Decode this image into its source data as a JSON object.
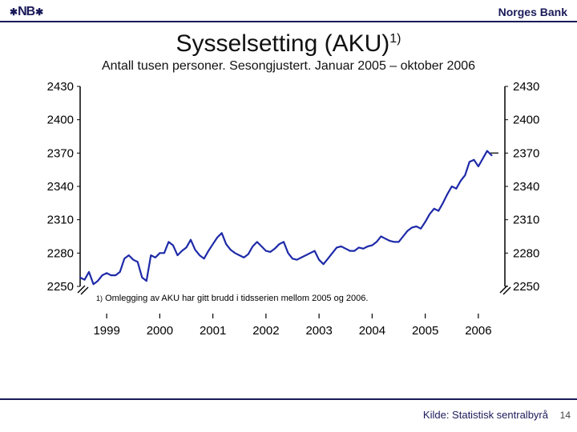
{
  "header": {
    "logo": "NB",
    "org": "Norges Bank"
  },
  "title": "Sysselsetting (AKU)",
  "title_sup": "1)",
  "subtitle": "Antall tusen personer. Sesongjustert. Januar 2005 – oktober 2006",
  "chart": {
    "type": "line",
    "ylim": [
      2250,
      2430
    ],
    "ytick_step": 30,
    "yticks": [
      2250,
      2280,
      2310,
      2340,
      2370,
      2400,
      2430
    ],
    "xlim_year": [
      1999,
      2007
    ],
    "xticks": [
      1999,
      2000,
      2001,
      2002,
      2003,
      2004,
      2005,
      2006
    ],
    "line_color": "#1e2aa8",
    "line_width": 2.2,
    "axis_color": "#000000",
    "background_color": "#ffffff",
    "crop_mark_color": "#000000",
    "y_label_fontsize": 15,
    "x_label_fontsize": 15,
    "series": [
      2258,
      2256,
      2263,
      2252,
      2255,
      2260,
      2262,
      2260,
      2260,
      2263,
      2275,
      2278,
      2274,
      2272,
      2258,
      2255,
      2278,
      2276,
      2280,
      2280,
      2290,
      2287,
      2278,
      2282,
      2285,
      2292,
      2283,
      2278,
      2275,
      2282,
      2288,
      2294,
      2298,
      2288,
      2283,
      2280,
      2278,
      2276,
      2279,
      2286,
      2290,
      2286,
      2282,
      2281,
      2284,
      2288,
      2290,
      2280,
      2275,
      2274,
      2276,
      2278,
      2280,
      2282,
      2274,
      2270,
      2275,
      2280,
      2285,
      2286,
      2284,
      2282,
      2282,
      2285,
      2284,
      2286,
      2287,
      2290,
      2295,
      2293,
      2291,
      2290,
      2290,
      2295,
      2300,
      2303,
      2304,
      2302,
      2308,
      2315,
      2320,
      2318,
      2325,
      2333,
      2340,
      2338,
      2345,
      2350,
      2362,
      2364,
      2358,
      2365,
      2372,
      2368
    ]
  },
  "footnote": "Omlegging av AKU har gitt brudd i tidsserien mellom 2005 og 2006.",
  "footnote_marker": "1)",
  "source": "Kilde: Statistisk sentralbyrå",
  "pagenum": "14"
}
